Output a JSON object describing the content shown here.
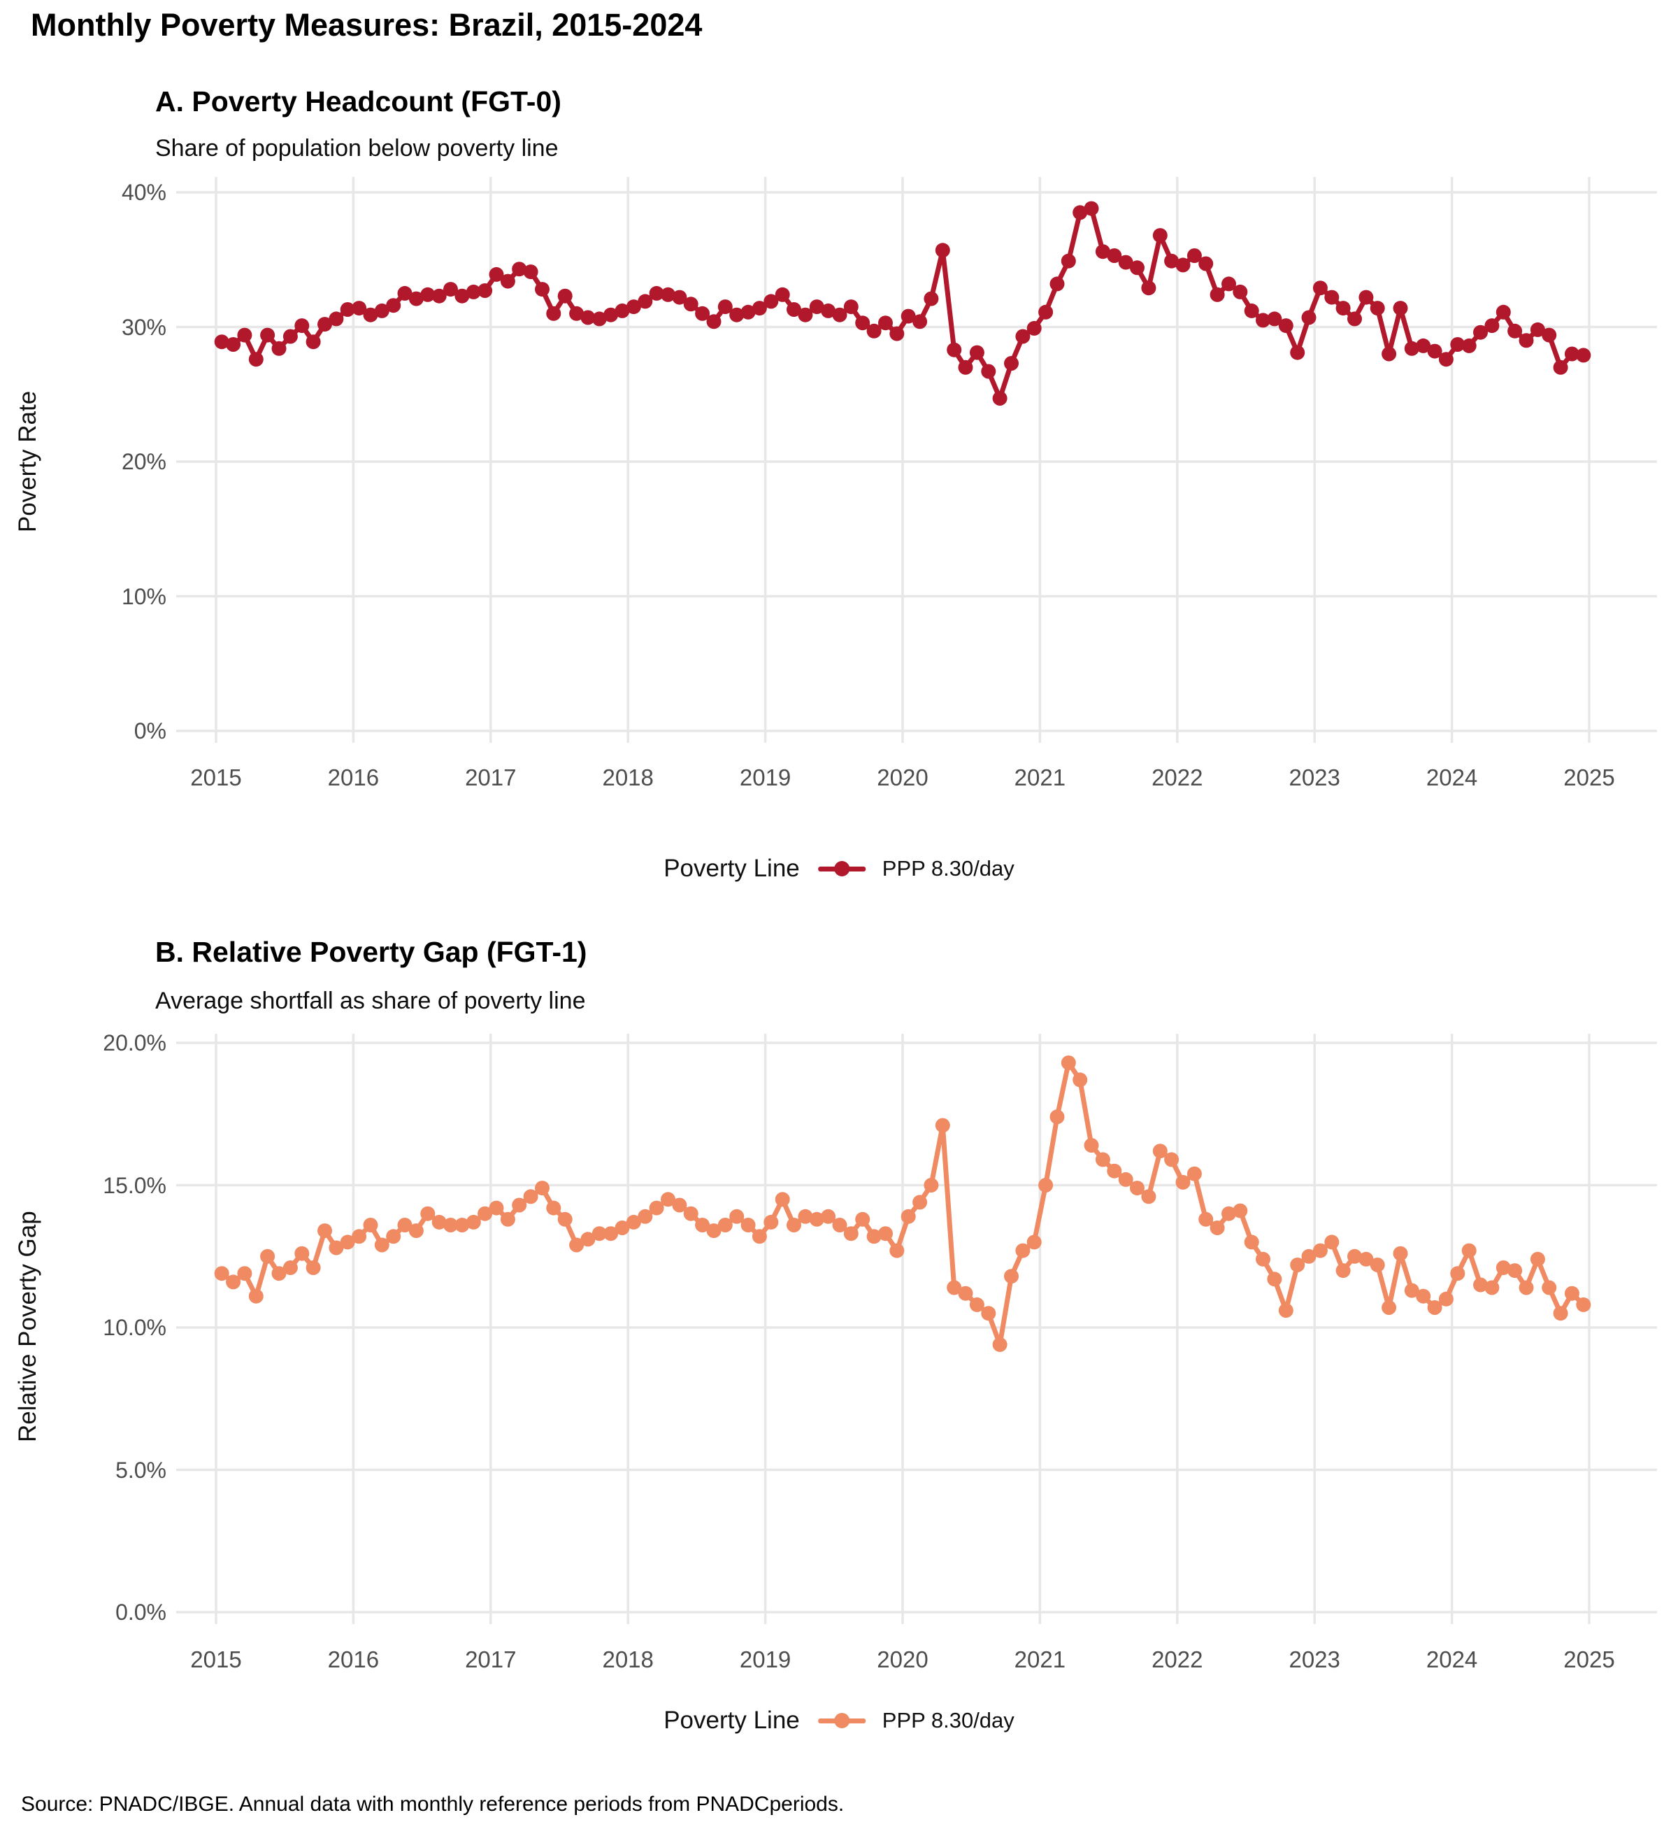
{
  "page_title": "Monthly Poverty Measures: Brazil, 2015-2024",
  "footer": "Source: PNADC/IBGE. Annual data with monthly reference periods from PNADCperiods.",
  "panel_a": {
    "title": "A. Poverty Headcount (FGT-0)",
    "subtitle": "Share of population below poverty line",
    "ylabel": "Poverty Rate",
    "legend_title": "Poverty Line",
    "legend_item": "PPP 8.30/day",
    "line_color": "#B2182B"
  },
  "panel_b": {
    "title": "B. Relative Poverty Gap (FGT-1)",
    "subtitle": "Average shortfall as share of poverty line",
    "ylabel": "Relative Poverty Gap",
    "legend_title": "Poverty Line",
    "legend_item": "PPP 8.30/day",
    "line_color": "#EF8A62"
  },
  "chart_data": [
    {
      "type": "line",
      "panel": "A",
      "title": "A. Poverty Headcount (FGT-0)",
      "subtitle": "Share of population below poverty line",
      "ylabel": "Poverty Rate",
      "x_unit": "monthly",
      "x_range_years": [
        2015,
        2025
      ],
      "x_ticks": [
        {
          "value": 2015,
          "label": "2015"
        },
        {
          "value": 2016,
          "label": "2016"
        },
        {
          "value": 2017,
          "label": "2017"
        },
        {
          "value": 2018,
          "label": "2018"
        },
        {
          "value": 2019,
          "label": "2019"
        },
        {
          "value": 2020,
          "label": "2020"
        },
        {
          "value": 2021,
          "label": "2021"
        },
        {
          "value": 2022,
          "label": "2022"
        },
        {
          "value": 2023,
          "label": "2023"
        },
        {
          "value": 2024,
          "label": "2024"
        },
        {
          "value": 2025,
          "label": "2025"
        }
      ],
      "y_ticks": [
        {
          "value": 0,
          "label": "0%"
        },
        {
          "value": 10,
          "label": "10%"
        },
        {
          "value": 20,
          "label": "20%"
        },
        {
          "value": 30,
          "label": "30%"
        },
        {
          "value": 40,
          "label": "40%"
        }
      ],
      "ylim": [
        0,
        41.5
      ],
      "grid": "major-only",
      "legend_position": "bottom",
      "legend_title": "Poverty Line",
      "series": [
        {
          "name": "PPP 8.30/day",
          "color": "#B2182B",
          "start": "2015-01",
          "values": [
            28.9,
            28.7,
            29.4,
            27.6,
            29.4,
            28.4,
            29.3,
            30.1,
            28.9,
            30.2,
            30.6,
            31.3,
            31.4,
            30.9,
            31.2,
            31.6,
            32.5,
            32.1,
            32.4,
            32.3,
            32.8,
            32.3,
            32.6,
            32.7,
            33.9,
            33.4,
            34.3,
            34.1,
            32.8,
            31.0,
            32.3,
            31.0,
            30.7,
            30.6,
            30.9,
            31.2,
            31.5,
            31.9,
            32.5,
            32.4,
            32.2,
            31.7,
            31.0,
            30.4,
            31.5,
            30.9,
            31.1,
            31.4,
            31.9,
            32.4,
            31.3,
            30.9,
            31.5,
            31.2,
            30.9,
            31.5,
            30.3,
            29.7,
            30.3,
            29.5,
            30.8,
            30.4,
            32.1,
            35.7,
            28.3,
            27.0,
            28.1,
            26.7,
            24.7,
            27.3,
            29.3,
            29.9,
            31.1,
            33.2,
            34.9,
            38.5,
            38.8,
            35.6,
            35.3,
            34.8,
            34.4,
            32.9,
            36.8,
            34.9,
            34.6,
            35.3,
            34.7,
            32.4,
            33.2,
            32.6,
            31.2,
            30.5,
            30.6,
            30.1,
            28.1,
            30.7,
            32.9,
            32.2,
            31.4,
            30.6,
            32.2,
            31.4,
            28.0,
            31.4,
            28.4,
            28.6,
            28.2,
            27.6,
            28.7,
            28.6,
            29.6,
            30.1,
            31.1,
            29.7,
            29.0,
            29.8,
            29.4,
            27.0,
            28.0,
            27.9
          ]
        }
      ]
    },
    {
      "type": "line",
      "panel": "B",
      "title": "B. Relative Poverty Gap (FGT-1)",
      "subtitle": "Average shortfall as share of poverty line",
      "ylabel": "Relative Poverty Gap",
      "x_unit": "monthly",
      "x_range_years": [
        2015,
        2025
      ],
      "x_ticks": [
        {
          "value": 2015,
          "label": "2015"
        },
        {
          "value": 2016,
          "label": "2016"
        },
        {
          "value": 2017,
          "label": "2017"
        },
        {
          "value": 2018,
          "label": "2018"
        },
        {
          "value": 2019,
          "label": "2019"
        },
        {
          "value": 2020,
          "label": "2020"
        },
        {
          "value": 2021,
          "label": "2021"
        },
        {
          "value": 2022,
          "label": "2022"
        },
        {
          "value": 2023,
          "label": "2023"
        },
        {
          "value": 2024,
          "label": "2024"
        },
        {
          "value": 2025,
          "label": "2025"
        }
      ],
      "y_ticks": [
        {
          "value": 0,
          "label": "0.0%"
        },
        {
          "value": 5,
          "label": "5.0%"
        },
        {
          "value": 10,
          "label": "10.0%"
        },
        {
          "value": 15,
          "label": "15.0%"
        },
        {
          "value": 20,
          "label": "20.0%"
        }
      ],
      "ylim": [
        0,
        20.8
      ],
      "grid": "major-only",
      "legend_position": "bottom",
      "legend_title": "Poverty Line",
      "series": [
        {
          "name": "PPP 8.30/day",
          "color": "#EF8A62",
          "start": "2015-01",
          "values": [
            11.9,
            11.6,
            11.9,
            11.1,
            12.5,
            11.9,
            12.1,
            12.6,
            12.1,
            13.4,
            12.8,
            13.0,
            13.2,
            13.6,
            12.9,
            13.2,
            13.6,
            13.4,
            14.0,
            13.7,
            13.6,
            13.6,
            13.7,
            14.0,
            14.2,
            13.8,
            14.3,
            14.6,
            14.9,
            14.2,
            13.8,
            12.9,
            13.1,
            13.3,
            13.3,
            13.5,
            13.7,
            13.9,
            14.2,
            14.5,
            14.3,
            14.0,
            13.6,
            13.4,
            13.6,
            13.9,
            13.6,
            13.2,
            13.7,
            14.5,
            13.6,
            13.9,
            13.8,
            13.9,
            13.6,
            13.3,
            13.8,
            13.2,
            13.3,
            12.7,
            13.9,
            14.4,
            15.0,
            17.1,
            11.4,
            11.2,
            10.8,
            10.5,
            9.4,
            11.8,
            12.7,
            13.0,
            15.0,
            17.4,
            19.3,
            18.7,
            16.4,
            15.9,
            15.5,
            15.2,
            14.9,
            14.6,
            16.2,
            15.9,
            15.1,
            15.4,
            13.8,
            13.5,
            14.0,
            14.1,
            13.0,
            12.4,
            11.7,
            10.6,
            12.2,
            12.5,
            12.7,
            13.0,
            12.0,
            12.5,
            12.4,
            12.2,
            10.7,
            12.6,
            11.3,
            11.1,
            10.7,
            11.0,
            11.9,
            12.7,
            11.5,
            11.4,
            12.1,
            12.0,
            11.4,
            12.4,
            11.4,
            10.5,
            11.2,
            10.8
          ]
        }
      ]
    }
  ]
}
